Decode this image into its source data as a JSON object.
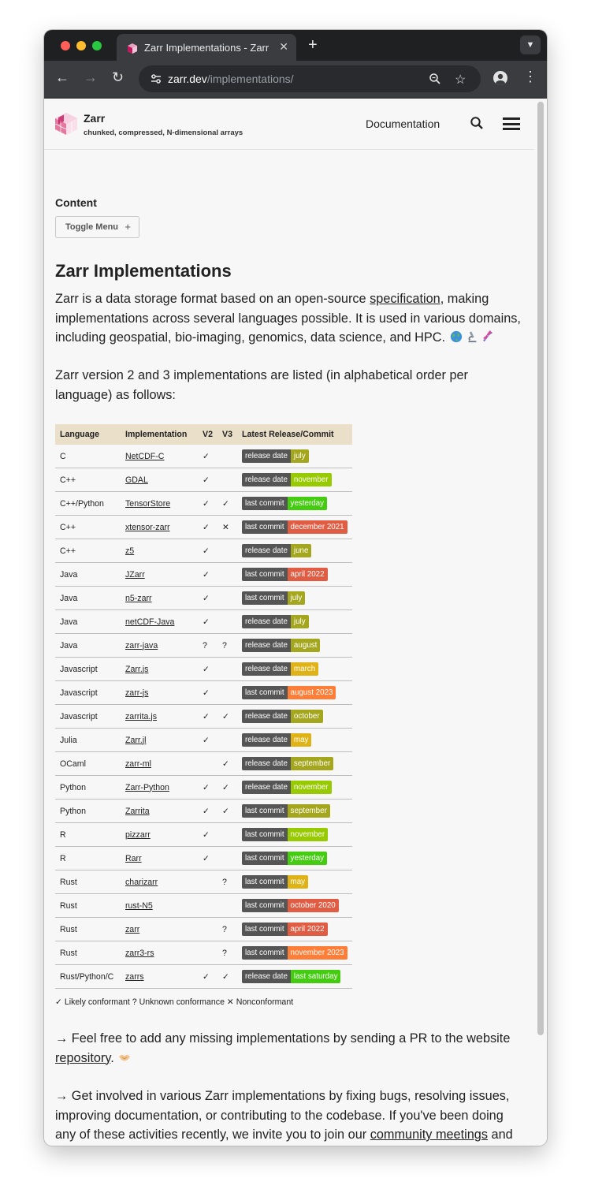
{
  "browser": {
    "tab_title": "Zarr Implementations - Zarr",
    "url_host": "zarr.dev",
    "url_path": "/implementations/"
  },
  "site": {
    "brand": "Zarr",
    "tagline": "chunked, compressed, N-dimensional arrays",
    "nav_documentation": "Documentation"
  },
  "sidebar": {
    "content_label": "Content",
    "toggle_menu": "Toggle Menu"
  },
  "page": {
    "title": "Zarr Implementations",
    "intro_before": "Zarr is a data storage format based on an open-source ",
    "intro_link": "specification",
    "intro_after": ", making implementations across several languages possible. It is used in various domains, including geospatial, bio-imaging, genomics, data science, and HPC. ",
    "intro2": "Zarr version 2 and 3 implementations are listed (in alphabetical order per language) as follows:",
    "legend": "✓ Likely conformant ? Unknown conformance ✕ Nonconformant",
    "cta1_before": "→ Feel free to add any missing implementations by sending a PR to the website ",
    "cta1_link": "repository",
    "cta1_after": ". ",
    "cta2_before": "→ Get involved in various Zarr implementations by fixing bugs, resolving issues, improving documentation, or contributing to the codebase. If you've been doing any of these activities recently, we invite you to join our ",
    "cta2_link": "community meetings",
    "cta2_after": " and share your work with us. We'd be delighted to showcase your efforts. "
  },
  "table": {
    "headers": [
      "Language",
      "Implementation",
      "V2",
      "V3",
      "Latest Release/Commit"
    ],
    "rows": [
      {
        "lang": "C",
        "impl": "NetCDF-C",
        "v2": "✓",
        "v3": "",
        "label": "release date",
        "value": "july",
        "color": "#a4a61d"
      },
      {
        "lang": "C++",
        "impl": "GDAL",
        "v2": "✓",
        "v3": "",
        "label": "release date",
        "value": "november",
        "color": "#97ca00"
      },
      {
        "lang": "C++/Python",
        "impl": "TensorStore",
        "v2": "✓",
        "v3": "✓",
        "label": "last commit",
        "value": "yesterday",
        "color": "#4c1"
      },
      {
        "lang": "C++",
        "impl": "xtensor-zarr",
        "v2": "✓",
        "v3": "✕",
        "label": "last commit",
        "value": "december 2021",
        "color": "#e05d44"
      },
      {
        "lang": "C++",
        "impl": "z5",
        "v2": "✓",
        "v3": "",
        "label": "release date",
        "value": "june",
        "color": "#a4a61d"
      },
      {
        "lang": "Java",
        "impl": "JZarr",
        "v2": "✓",
        "v3": "",
        "label": "last commit",
        "value": "april 2022",
        "color": "#e05d44"
      },
      {
        "lang": "Java",
        "impl": "n5-zarr",
        "v2": "✓",
        "v3": "",
        "label": "last commit",
        "value": "july",
        "color": "#a4a61d"
      },
      {
        "lang": "Java",
        "impl": "netCDF-Java",
        "v2": "✓",
        "v3": "",
        "label": "release date",
        "value": "july",
        "color": "#a4a61d"
      },
      {
        "lang": "Java",
        "impl": "zarr-java",
        "v2": "?",
        "v3": "?",
        "label": "release date",
        "value": "august",
        "color": "#a4a61d"
      },
      {
        "lang": "Javascript",
        "impl": "Zarr.js",
        "v2": "✓",
        "v3": "",
        "label": "release date",
        "value": "march",
        "color": "#dfb317"
      },
      {
        "lang": "Javascript",
        "impl": "zarr-js",
        "v2": "✓",
        "v3": "",
        "label": "last commit",
        "value": "august 2023",
        "color": "#fe7d37"
      },
      {
        "lang": "Javascript",
        "impl": "zarrita.js",
        "v2": "✓",
        "v3": "✓",
        "label": "release date",
        "value": "october",
        "color": "#a4a61d"
      },
      {
        "lang": "Julia",
        "impl": "Zarr.jl",
        "v2": "✓",
        "v3": "",
        "label": "release date",
        "value": "may",
        "color": "#dfb317"
      },
      {
        "lang": "OCaml",
        "impl": "zarr-ml",
        "v2": "",
        "v3": "✓",
        "label": "release date",
        "value": "september",
        "color": "#a4a61d"
      },
      {
        "lang": "Python",
        "impl": "Zarr-Python",
        "v2": "✓",
        "v3": "✓",
        "label": "release date",
        "value": "november",
        "color": "#97ca00"
      },
      {
        "lang": "Python",
        "impl": "Zarrita",
        "v2": "✓",
        "v3": "✓",
        "label": "last commit",
        "value": "september",
        "color": "#a4a61d"
      },
      {
        "lang": "R",
        "impl": "pizzarr",
        "v2": "✓",
        "v3": "",
        "label": "last commit",
        "value": "november",
        "color": "#97ca00"
      },
      {
        "lang": "R",
        "impl": "Rarr",
        "v2": "✓",
        "v3": "",
        "label": "last commit",
        "value": "yesterday",
        "color": "#4c1"
      },
      {
        "lang": "Rust",
        "impl": "charizarr",
        "v2": "",
        "v3": "?",
        "label": "last commit",
        "value": "may",
        "color": "#dfb317"
      },
      {
        "lang": "Rust",
        "impl": "rust-N5",
        "v2": "",
        "v3": "",
        "label": "last commit",
        "value": "october 2020",
        "color": "#e05d44"
      },
      {
        "lang": "Rust",
        "impl": "zarr",
        "v2": "",
        "v3": "?",
        "label": "last commit",
        "value": "april 2022",
        "color": "#e05d44"
      },
      {
        "lang": "Rust",
        "impl": "zarr3-rs",
        "v2": "",
        "v3": "?",
        "label": "last commit",
        "value": "november 2023",
        "color": "#fe7d37"
      },
      {
        "lang": "Rust/Python/C",
        "impl": "zarrs",
        "v2": "✓",
        "v3": "✓",
        "label": "release date",
        "value": "last saturday",
        "color": "#4c1"
      }
    ]
  },
  "icons": {
    "globe": "globe-emoji",
    "microscope": "microscope-emoji",
    "dna": "dna-emoji",
    "handshake": "handshake-emoji",
    "muscle": "flexed-biceps-emoji"
  }
}
